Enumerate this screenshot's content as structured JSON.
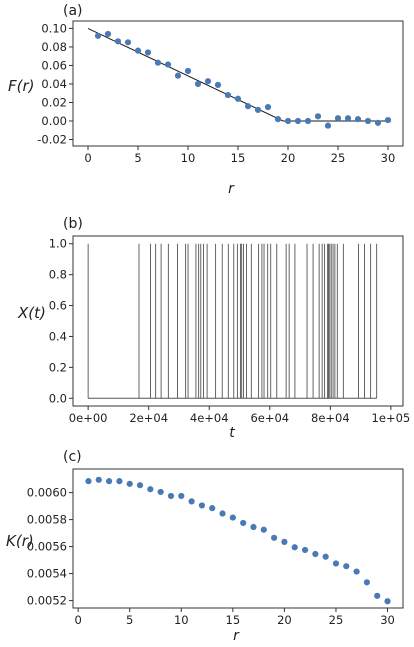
{
  "chart_data": [
    {
      "panel": "(a)",
      "type": "scatter",
      "xlabel": "r",
      "ylabel": "F(r)",
      "xlim": [
        -1.5,
        31.5
      ],
      "ylim": [
        -0.027,
        0.108
      ],
      "xticks": [
        "0",
        "5",
        "10",
        "15",
        "20",
        "25",
        "30"
      ],
      "yticks": [
        "-0.02",
        "0.00",
        "0.02",
        "0.04",
        "0.06",
        "0.08",
        "0.10"
      ],
      "marker_color": "#4a7ab5",
      "x": [
        1,
        2,
        3,
        4,
        5,
        6,
        7,
        8,
        9,
        10,
        11,
        12,
        13,
        14,
        15,
        16,
        17,
        18,
        19,
        20,
        21,
        22,
        23,
        24,
        25,
        26,
        27,
        28,
        29,
        30
      ],
      "y": [
        0.092,
        0.094,
        0.086,
        0.085,
        0.076,
        0.074,
        0.063,
        0.061,
        0.049,
        0.054,
        0.04,
        0.043,
        0.039,
        0.028,
        0.024,
        0.016,
        0.012,
        0.015,
        0.002,
        0.0,
        0.0,
        0.0,
        0.005,
        -0.005,
        0.003,
        0.003,
        0.002,
        0.0,
        -0.002,
        0.001
      ],
      "fit_line": {
        "x": [
          0,
          19.5,
          30
        ],
        "y": [
          0.1,
          0.0,
          0.0
        ],
        "color": "#1a1a1a"
      }
    },
    {
      "panel": "(b)",
      "type": "line",
      "xlabel": "t",
      "ylabel": "X(t)",
      "xlim": [
        -5000,
        104000
      ],
      "ylim": [
        -0.05,
        1.05
      ],
      "xticks": [
        "0e+00",
        "2e+04",
        "4e+04",
        "6e+04",
        "8e+04",
        "1e+05"
      ],
      "yticks": [
        "0.0",
        "0.2",
        "0.4",
        "0.6",
        "0.8",
        "1.0"
      ],
      "series_color": "#555555",
      "event_times": [
        0,
        16800,
        20600,
        22300,
        24100,
        26500,
        29500,
        32200,
        33000,
        35600,
        36500,
        37200,
        38100,
        39300,
        42100,
        44300,
        46300,
        48100,
        49300,
        50300,
        50700,
        51300,
        52300,
        53900,
        56300,
        57400,
        58100,
        59300,
        60300,
        62300,
        65400,
        66400,
        68300,
        72300,
        74300,
        76300,
        77300,
        78100,
        79100,
        79400,
        79800,
        80300,
        80900,
        81500,
        82300,
        84300,
        89300,
        91300,
        93300,
        95300
      ]
    },
    {
      "panel": "(c)",
      "type": "scatter",
      "xlabel": "r",
      "ylabel": "K(r)",
      "xlim": [
        -0.5,
        31.5
      ],
      "ylim": [
        0.005145,
        0.006175
      ],
      "xticks": [
        "0",
        "5",
        "10",
        "15",
        "20",
        "25",
        "30"
      ],
      "yticks": [
        "0.0052",
        "0.0054",
        "0.0056",
        "0.0058",
        "0.0060"
      ],
      "marker_color": "#4a7ab5",
      "x": [
        1,
        2,
        3,
        4,
        5,
        6,
        7,
        8,
        9,
        10,
        11,
        12,
        13,
        14,
        15,
        16,
        17,
        18,
        19,
        20,
        21,
        22,
        23,
        24,
        25,
        26,
        27,
        28,
        29,
        30
      ],
      "y": [
        0.006085,
        0.006095,
        0.006085,
        0.006085,
        0.006065,
        0.006055,
        0.006025,
        0.006005,
        0.005975,
        0.005975,
        0.005935,
        0.005905,
        0.005885,
        0.005845,
        0.005815,
        0.005775,
        0.005745,
        0.005725,
        0.005665,
        0.005635,
        0.005595,
        0.005575,
        0.005545,
        0.005525,
        0.005475,
        0.005455,
        0.005415,
        0.005335,
        0.005235,
        0.005195
      ]
    }
  ]
}
